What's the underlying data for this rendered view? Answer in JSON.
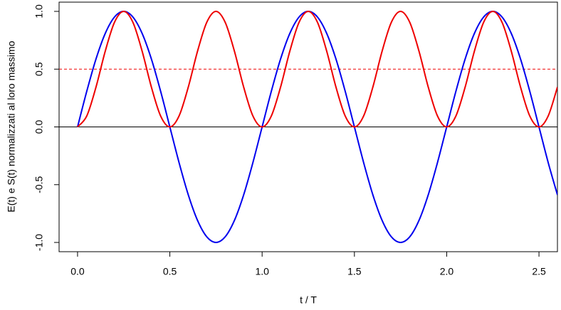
{
  "chart_data": {
    "type": "line",
    "x_label": "t / T",
    "y_label": "E(t)  e  S(t)  normalizzati al loro massimo",
    "x": [
      0,
      0.05,
      0.1,
      0.15,
      0.2,
      0.25,
      0.3,
      0.35,
      0.4,
      0.45,
      0.5,
      0.55,
      0.6,
      0.65,
      0.7,
      0.75,
      0.8,
      0.85,
      0.9,
      0.95,
      1,
      1.05,
      1.1,
      1.15,
      1.2,
      1.25,
      1.3,
      1.35,
      1.4,
      1.45,
      1.5,
      1.55,
      1.6,
      1.65,
      1.7,
      1.75,
      1.8,
      1.85,
      1.9,
      1.95,
      2,
      2.05,
      2.1,
      2.15,
      2.2,
      2.25,
      2.3,
      2.35,
      2.4,
      2.45,
      2.5,
      2.55,
      2.6
    ],
    "series": [
      {
        "color": "#0000ee",
        "values": [
          0,
          0.309,
          0.588,
          0.809,
          0.951,
          1,
          0.951,
          0.809,
          0.588,
          0.309,
          0,
          -0.309,
          -0.588,
          -0.809,
          -0.951,
          -1,
          -0.951,
          -0.809,
          -0.588,
          -0.309,
          0,
          0.309,
          0.588,
          0.809,
          0.951,
          1,
          0.951,
          0.809,
          0.588,
          0.309,
          0,
          -0.309,
          -0.588,
          -0.809,
          -0.951,
          -1,
          -0.951,
          -0.809,
          -0.588,
          -0.309,
          0,
          0.309,
          0.588,
          0.809,
          0.951,
          1,
          0.951,
          0.809,
          0.588,
          0.309,
          0,
          -0.309,
          -0.588
        ]
      },
      {
        "color": "#ee0000",
        "values": [
          0,
          0.095,
          0.345,
          0.655,
          0.905,
          1,
          0.905,
          0.655,
          0.345,
          0.095,
          0,
          0.095,
          0.345,
          0.655,
          0.905,
          1,
          0.905,
          0.655,
          0.345,
          0.095,
          0,
          0.095,
          0.345,
          0.655,
          0.905,
          1,
          0.905,
          0.655,
          0.345,
          0.095,
          0,
          0.095,
          0.345,
          0.655,
          0.905,
          1,
          0.905,
          0.655,
          0.345,
          0.095,
          0,
          0.095,
          0.345,
          0.655,
          0.905,
          1,
          0.905,
          0.655,
          0.345,
          0.095,
          0,
          0.095,
          0.345
        ]
      }
    ],
    "hlines": [
      {
        "value": 0,
        "color": "#000000",
        "dashed": false
      },
      {
        "value": 0.5,
        "color": "#ee0000",
        "dashed": true
      }
    ],
    "xlim": [
      -0.1,
      2.6
    ],
    "ylim": [
      -1.08,
      1.08
    ],
    "xticks": [
      {
        "value": 0,
        "label": "0.0"
      },
      {
        "value": 0.5,
        "label": "0.5"
      },
      {
        "value": 1,
        "label": "1.0"
      },
      {
        "value": 1.5,
        "label": "1.5"
      },
      {
        "value": 2,
        "label": "2.0"
      },
      {
        "value": 2.5,
        "label": "2.5"
      }
    ],
    "yticks": [
      {
        "value": -1,
        "label": "-1.0"
      },
      {
        "value": -0.5,
        "label": "-0.5"
      },
      {
        "value": 0,
        "label": "0.0"
      },
      {
        "value": 0.5,
        "label": "0.5"
      },
      {
        "value": 1,
        "label": "1.0"
      }
    ]
  }
}
